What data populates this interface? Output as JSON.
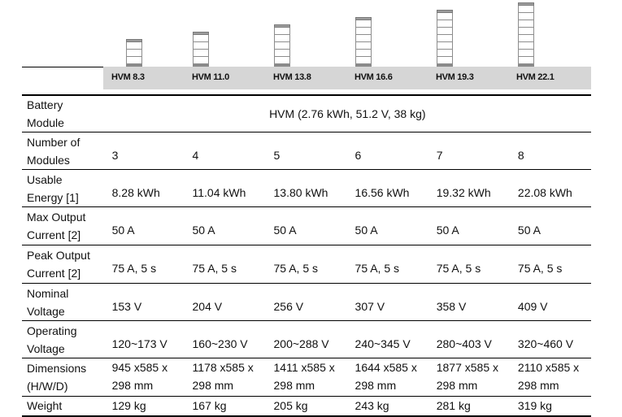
{
  "models": [
    "HVM 8.3",
    "HVM 11.0",
    "HVM 13.8",
    "HVM 16.6",
    "HVM 19.3",
    "HVM 22.1"
  ],
  "rows": [
    {
      "label": [
        "Battery",
        "Module"
      ],
      "span": "HVM (2.76 kWh, 51.2 V, 38 kg)"
    },
    {
      "label": [
        "Number of",
        "Modules"
      ],
      "values": [
        "3",
        "4",
        "5",
        "6",
        "7",
        "8"
      ]
    },
    {
      "label": [
        "Usable",
        "Energy [1]"
      ],
      "values": [
        "8.28 kWh",
        "11.04 kWh",
        "13.80 kWh",
        "16.56 kWh",
        "19.32 kWh",
        "22.08 kWh"
      ]
    },
    {
      "label": [
        "Max Output",
        "Current [2]"
      ],
      "values": [
        "50 A",
        "50 A",
        "50 A",
        "50 A",
        "50 A",
        "50 A"
      ]
    },
    {
      "label": [
        "Peak Output",
        "Current [2]"
      ],
      "values": [
        "75 A, 5 s",
        "75 A, 5 s",
        "75 A, 5 s",
        "75 A, 5 s",
        "75 A, 5 s",
        "75 A, 5 s"
      ]
    },
    {
      "label": [
        "Nominal",
        "Voltage"
      ],
      "values": [
        "153 V",
        "204 V",
        "256 V",
        "307 V",
        "358 V",
        "409 V"
      ]
    },
    {
      "label": [
        "Operating",
        "Voltage"
      ],
      "values": [
        "120~173 V",
        "160~230 V",
        "200~288 V",
        "240~345 V",
        "280~403 V",
        "320~460 V"
      ]
    },
    {
      "label": [
        "Dimensions",
        "(H/W/D)"
      ],
      "dims": [
        [
          "945 x585 x",
          "298 mm"
        ],
        [
          "1178 x585 x",
          "298 mm"
        ],
        [
          "1411 x585 x",
          "298 mm"
        ],
        [
          "1644 x585 x",
          "298 mm"
        ],
        [
          "1877 x585 x",
          "298 mm"
        ],
        [
          "2110 x585 x",
          "298 mm"
        ]
      ]
    },
    {
      "label": [
        "Weight"
      ],
      "values": [
        "129 kg",
        "167 kg",
        "205 kg",
        "243 kg",
        "281 kg",
        "319 kg"
      ]
    }
  ]
}
